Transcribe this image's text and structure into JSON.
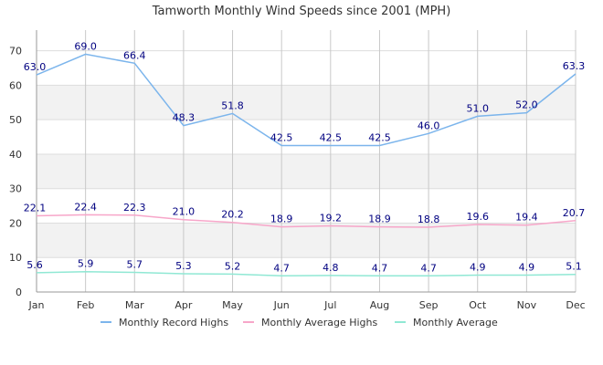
{
  "chart_data": {
    "type": "line",
    "title": "Tamworth Monthly Wind Speeds since 2001 (MPH)",
    "xlabel": "",
    "ylabel": "",
    "categories": [
      "Jan",
      "Feb",
      "Mar",
      "Apr",
      "May",
      "Jun",
      "Jul",
      "Aug",
      "Sep",
      "Oct",
      "Nov",
      "Dec"
    ],
    "ylim": [
      0,
      76
    ],
    "yticks": [
      0,
      10,
      20,
      30,
      40,
      50,
      60,
      70
    ],
    "grid": true,
    "legend_position": "bottom",
    "series": [
      {
        "name": "Monthly Record Highs",
        "color": "#7cb5ec",
        "values": [
          63.0,
          69.0,
          66.4,
          48.3,
          51.8,
          42.5,
          42.5,
          42.5,
          46.0,
          51.0,
          52.0,
          63.3
        ],
        "labels": [
          "63.0",
          "69.0",
          "66.4",
          "48.3",
          "51.8",
          "42.5",
          "42.5",
          "42.5",
          "46.0",
          "51.0",
          "52.0",
          "63.3"
        ]
      },
      {
        "name": "Monthly Average Highs",
        "color": "#f7a6c9",
        "values": [
          22.1,
          22.4,
          22.3,
          21.0,
          20.2,
          18.9,
          19.2,
          18.9,
          18.8,
          19.6,
          19.4,
          20.7
        ],
        "labels": [
          "22.1",
          "22.4",
          "22.3",
          "21.0",
          "20.2",
          "18.9",
          "19.2",
          "18.9",
          "18.8",
          "19.6",
          "19.4",
          "20.7"
        ]
      },
      {
        "name": "Monthly Average",
        "color": "#90e8d4",
        "values": [
          5.6,
          5.9,
          5.7,
          5.3,
          5.2,
          4.7,
          4.8,
          4.7,
          4.7,
          4.9,
          4.9,
          5.1
        ],
        "labels": [
          "5.6",
          "5.9",
          "5.7",
          "5.3",
          "5.2",
          "4.7",
          "4.8",
          "4.7",
          "4.7",
          "4.9",
          "4.9",
          "5.1"
        ]
      }
    ],
    "band_color": "#f2f2f2",
    "grid_color": "#dddddd"
  }
}
